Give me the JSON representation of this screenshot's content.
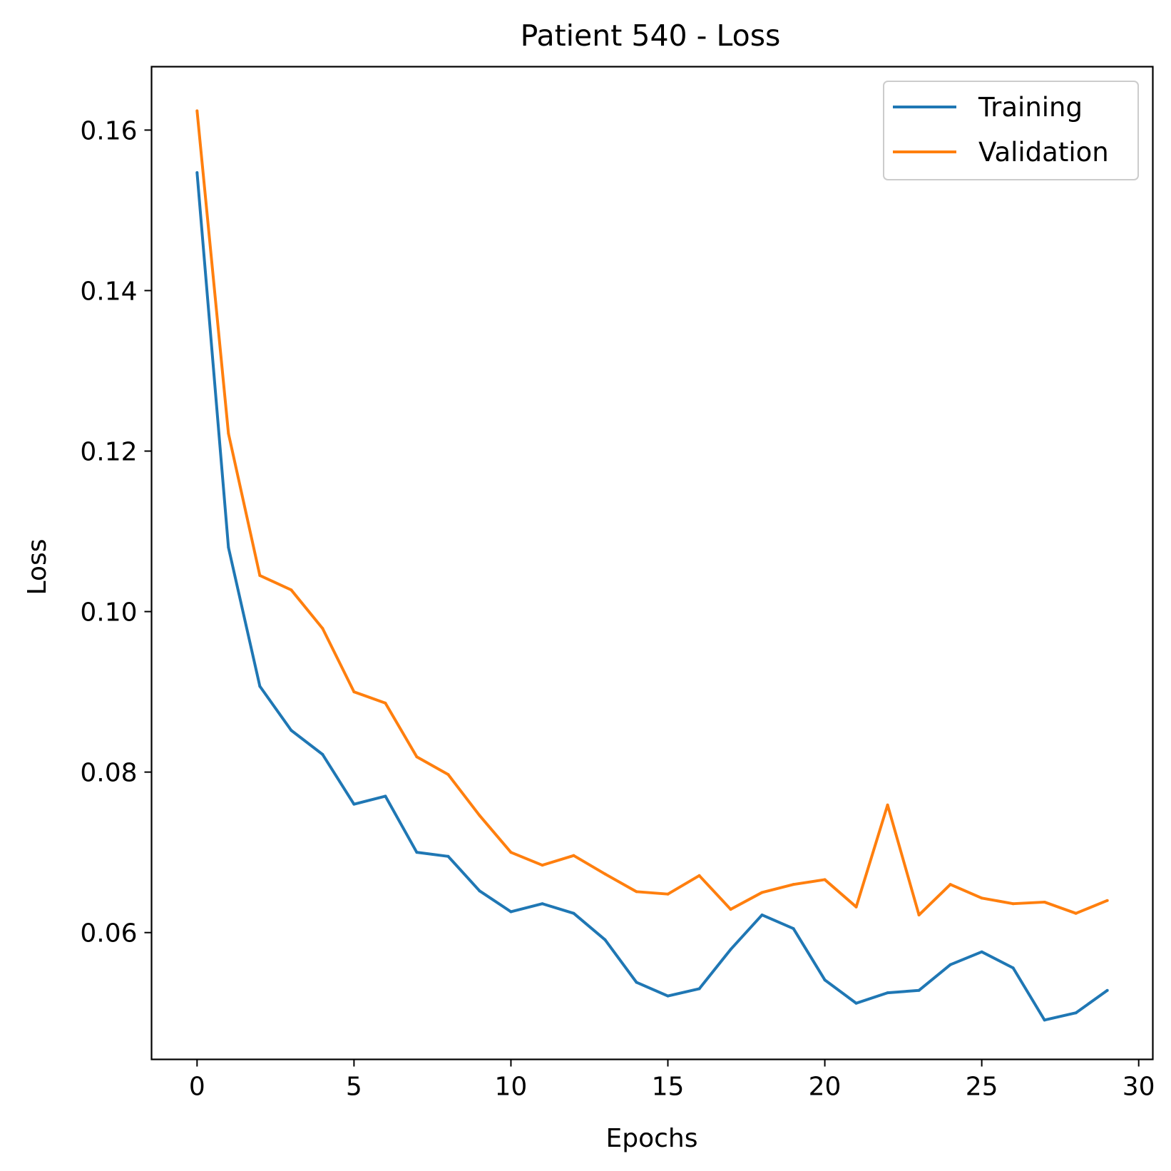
{
  "chart_data": {
    "type": "line",
    "title": "Patient 540 - Loss",
    "xlabel": "Epochs",
    "ylabel": "Loss",
    "xlim": [
      -1.45,
      30.45
    ],
    "ylim": [
      0.0442,
      0.1679
    ],
    "xticks": [
      0,
      5,
      10,
      15,
      20,
      25,
      30
    ],
    "xtick_labels": [
      "0",
      "5",
      "10",
      "15",
      "20",
      "25",
      "30"
    ],
    "yticks": [
      0.06,
      0.08,
      0.1,
      0.12,
      0.14,
      0.16
    ],
    "ytick_labels": [
      "0.06",
      "0.08",
      "0.10",
      "0.12",
      "0.14",
      "0.16"
    ],
    "grid": false,
    "legend": "top-right",
    "x": [
      0,
      1,
      2,
      3,
      4,
      5,
      6,
      7,
      8,
      9,
      10,
      11,
      12,
      13,
      14,
      15,
      16,
      17,
      18,
      19,
      20,
      21,
      22,
      23,
      24,
      25,
      26,
      27,
      28,
      29
    ],
    "series": [
      {
        "name": "Training",
        "color": "#1f77b4",
        "values": [
          0.1547,
          0.108,
          0.0907,
          0.0852,
          0.0822,
          0.076,
          0.077,
          0.07,
          0.0695,
          0.0652,
          0.0626,
          0.0636,
          0.0624,
          0.0591,
          0.0538,
          0.0521,
          0.053,
          0.0579,
          0.0622,
          0.0605,
          0.0541,
          0.0512,
          0.0525,
          0.0528,
          0.056,
          0.0576,
          0.0556,
          0.0491,
          0.05,
          0.0528
        ]
      },
      {
        "name": "Validation",
        "color": "#ff7f0e",
        "values": [
          0.1624,
          0.1222,
          0.1045,
          0.1027,
          0.0979,
          0.09,
          0.0886,
          0.0819,
          0.0797,
          0.0746,
          0.07,
          0.0684,
          0.0696,
          0.0673,
          0.0651,
          0.0648,
          0.0671,
          0.0629,
          0.065,
          0.066,
          0.0666,
          0.0632,
          0.0759,
          0.0622,
          0.066,
          0.0643,
          0.0636,
          0.0638,
          0.0624,
          0.064
        ]
      }
    ]
  }
}
